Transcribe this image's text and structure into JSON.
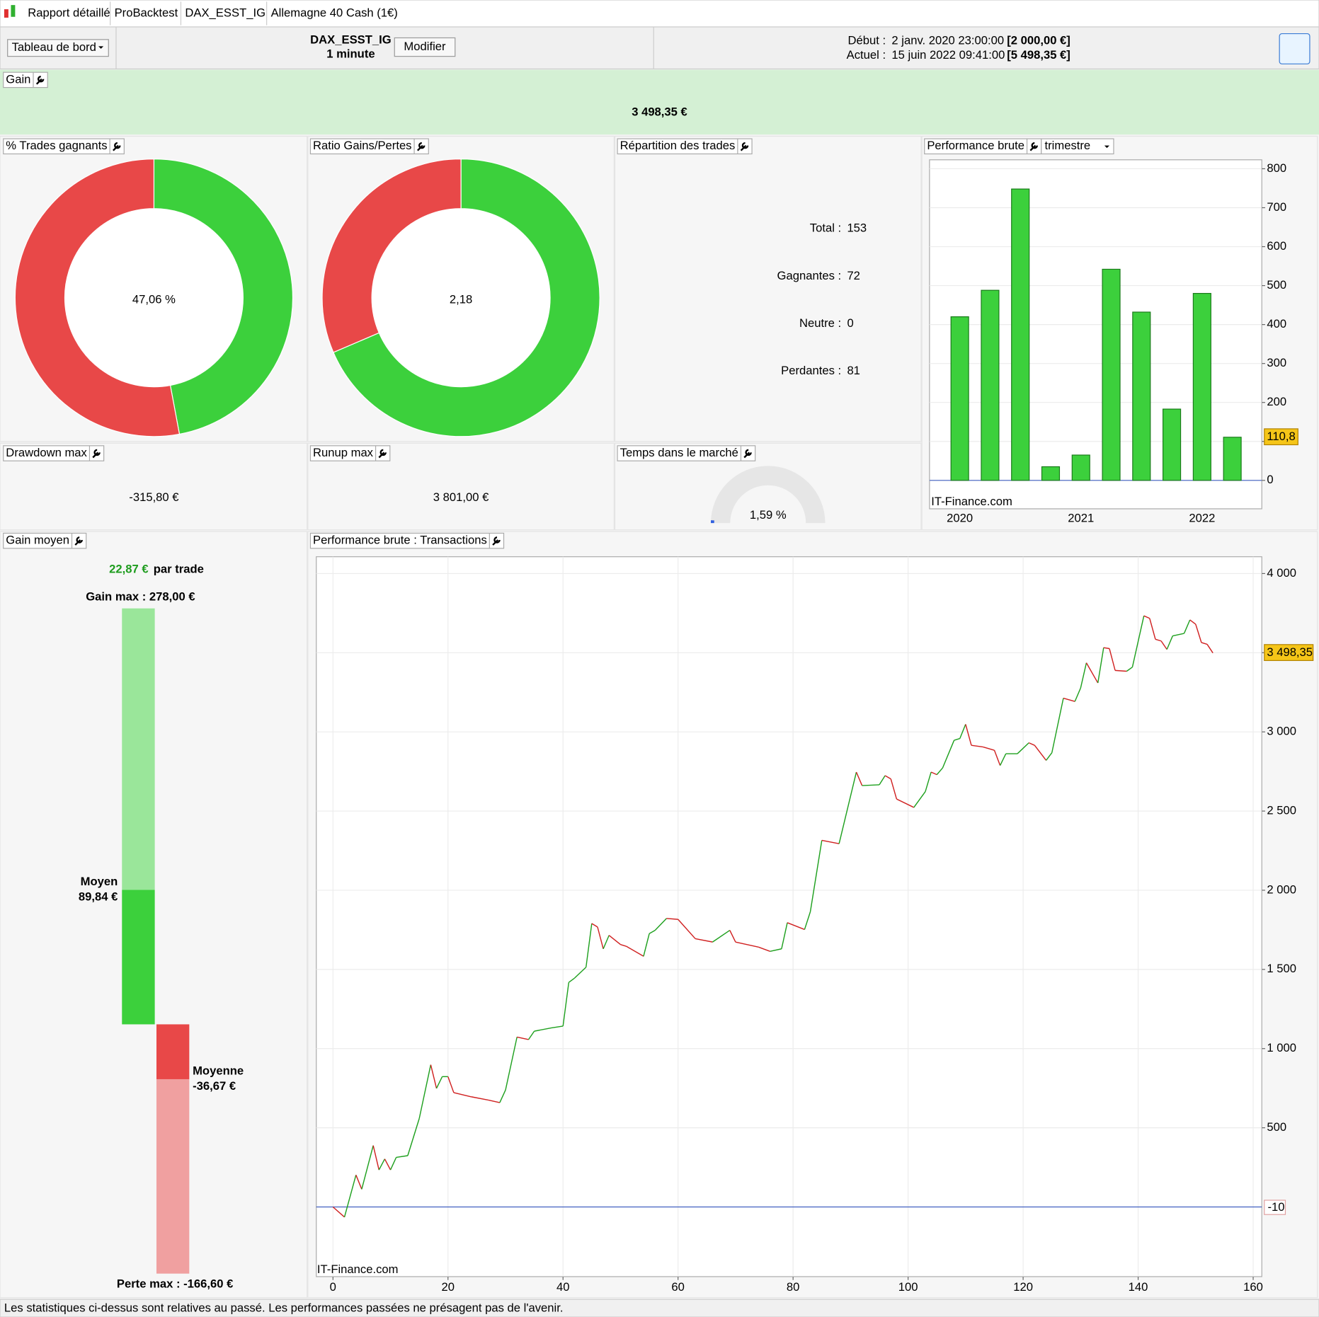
{
  "window": {
    "tabs": [
      "Rapport détaillé",
      "ProBacktest",
      "DAX_ESST_IG",
      "Allemagne 40 Cash (1€)"
    ]
  },
  "toolbar": {
    "dashboard": "Tableau de bord",
    "system": "DAX_ESST_IG",
    "timeframe": "1 minute",
    "modify": "Modifier",
    "start_label": "Début :",
    "start": "2 janv. 2020 23:00:00",
    "start_capital": "[2 000,00 €]",
    "current_label": "Actuel :",
    "current": "15 juin 2022 09:41:00",
    "current_capital": "[5 498,35 €]"
  },
  "gain": {
    "label": "Gain",
    "value": "3 498,35 €"
  },
  "win_pct": {
    "label": "% Trades gagnants",
    "text": "47,06 %",
    "value": 47.06
  },
  "ratio": {
    "label": "Ratio Gains/Pertes",
    "text": "2,18",
    "value": 2.18
  },
  "distribution": {
    "label": "Répartition des trades",
    "rows": [
      {
        "label": "Total :",
        "value": 153
      },
      {
        "label": "Gagnantes :",
        "value": 72
      },
      {
        "label": "Neutre :",
        "value": 0
      },
      {
        "label": "Perdantes :",
        "value": 81
      }
    ]
  },
  "quarterly": {
    "label": "Performance brute",
    "period": "trimestre",
    "type": "bar",
    "watermark": "IT-Finance.com",
    "categories": [
      "2020",
      null,
      null,
      null,
      "2021",
      null,
      null,
      null,
      "2022",
      null
    ],
    "values": [
      420,
      488,
      748,
      35,
      65,
      542,
      432,
      183,
      480,
      110.8
    ],
    "last_label": "110,8",
    "color": "#3cd03c",
    "ylim": [
      -73,
      823
    ],
    "yticks": [
      0,
      100,
      200,
      300,
      400,
      500,
      600,
      700,
      800
    ],
    "grid": true
  },
  "drawdown": {
    "label": "Drawdown max",
    "value": "-315,80 €"
  },
  "runup": {
    "label": "Runup max",
    "value": "3 801,00 €"
  },
  "time_in_market": {
    "label": "Temps dans le marché",
    "text": "1,59 %",
    "value": 1.59
  },
  "avg_gain": {
    "label": "Gain moyen",
    "value": "22,87 €",
    "suffix": "par trade",
    "max_label": "Gain max : 278,00 €",
    "max": 278,
    "avg_win_label": "Moyen",
    "avg_win_text": "89,84 €",
    "avg_win": 89.84,
    "avg_loss_label": "Moyenne",
    "avg_loss_text": "-36,67 €",
    "avg_loss": -36.67,
    "min_label": "Perte max : -166,60 €",
    "min": -166.6
  },
  "equity": {
    "label": "Performance brute : Transactions",
    "type": "line",
    "watermark": "IT-Finance.com",
    "last_label": "3 498,35",
    "marker_label": "-10",
    "x": [
      0,
      2,
      4,
      5,
      7,
      8,
      9,
      10,
      11,
      13,
      15,
      17,
      18,
      19,
      20,
      21,
      24,
      27,
      29,
      30,
      32,
      34,
      35,
      38,
      40,
      41,
      42,
      44,
      45,
      46,
      47,
      48,
      50,
      51,
      54,
      55,
      56,
      58,
      60,
      63,
      66,
      69,
      70,
      74,
      76,
      78,
      79,
      82,
      83,
      85,
      88,
      91,
      92,
      95,
      96,
      97,
      98,
      101,
      103,
      104,
      105,
      106,
      108,
      109,
      110,
      111,
      113,
      115,
      116,
      117,
      119,
      121,
      122,
      124,
      125,
      127,
      129,
      130,
      131,
      133,
      134,
      135,
      136,
      138,
      139,
      141,
      142,
      143,
      144,
      145,
      146,
      148,
      149,
      150,
      151,
      152,
      153
    ],
    "values": [
      0,
      -64,
      202,
      112,
      388,
      234,
      303,
      234,
      313,
      324,
      558,
      898,
      749,
      823,
      823,
      722,
      696,
      675,
      659,
      738,
      1073,
      1057,
      1110,
      1131,
      1142,
      1418,
      1445,
      1514,
      1790,
      1768,
      1630,
      1715,
      1657,
      1646,
      1583,
      1726,
      1747,
      1822,
      1816,
      1694,
      1673,
      1747,
      1673,
      1641,
      1614,
      1630,
      1795,
      1752,
      1864,
      2315,
      2294,
      2746,
      2661,
      2666,
      2724,
      2703,
      2576,
      2523,
      2623,
      2746,
      2730,
      2772,
      2947,
      2958,
      3048,
      2915,
      2905,
      2884,
      2788,
      2862,
      2862,
      2931,
      2915,
      2820,
      2868,
      3213,
      3192,
      3277,
      3436,
      3309,
      3532,
      3526,
      3388,
      3383,
      3409,
      3733,
      3717,
      3585,
      3574,
      3521,
      3606,
      3622,
      3707,
      3680,
      3564,
      3553,
      3498.35
    ],
    "xlim": [
      -2.9,
      161.5
    ],
    "ylim": [
      -440,
      4106
    ],
    "xticks": [
      0,
      20,
      40,
      60,
      80,
      100,
      120,
      140,
      160
    ],
    "yticks": [
      500,
      {
        "value": 1000,
        "label": "1 000"
      },
      {
        "value": 1500,
        "label": "1 500"
      },
      {
        "value": 2000,
        "label": "2 000"
      },
      {
        "value": 2500,
        "label": "2 500"
      },
      {
        "value": 3000,
        "label": "3 000"
      },
      {
        "value": 3500,
        "label": "3 500"
      },
      {
        "value": 4000,
        "label": "4 000"
      }
    ],
    "grid": true
  },
  "footer": "Les statistiques ci-dessus sont relatives au passé. Les performances passées ne présagent pas de l'avenir."
}
